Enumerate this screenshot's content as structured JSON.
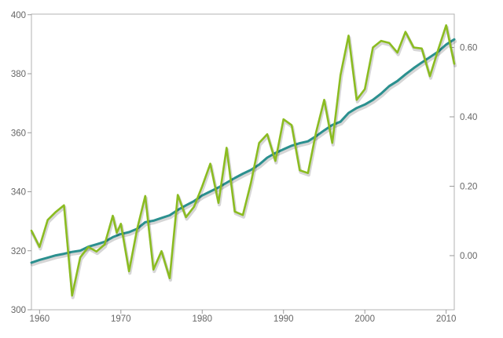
{
  "chart_data": {
    "type": "line",
    "title": "",
    "grid": false,
    "legend": false,
    "background": "#ffffff",
    "plot_border_color": "#b3b3b3",
    "tick_color": "#999999",
    "label_color": "#666666",
    "x_range": [
      1959,
      2011
    ],
    "x_axis": {
      "tick_labels": [
        "1960",
        "1970",
        "1980",
        "1990",
        "2000",
        "2010"
      ],
      "tick_values": [
        1960,
        1970,
        1980,
        1990,
        2000,
        2010
      ]
    },
    "left_axis": {
      "tick_labels": [
        "400",
        "380",
        "360",
        "340",
        "320",
        "300"
      ],
      "tick_values": [
        400,
        380,
        360,
        340,
        320,
        300
      ],
      "range": [
        300,
        400.2
      ]
    },
    "right_axis": {
      "tick_labels": [
        "0.60",
        "0.40",
        "0.20",
        "0.00"
      ],
      "tick_values": [
        0.6,
        0.4,
        0.2,
        0.0
      ],
      "range": [
        -0.156,
        0.696
      ]
    },
    "series": [
      {
        "name": "series-teal-smooth",
        "axis": "left",
        "color": "#2b908f",
        "stroke_width": 3,
        "start_year": 1959,
        "values": [
          315.97,
          316.91,
          317.64,
          318.45,
          318.99,
          319.62,
          320.04,
          321.38,
          322.16,
          323.04,
          324.62,
          325.68,
          326.32,
          327.45,
          329.68,
          330.18,
          331.11,
          332.04,
          333.83,
          335.4,
          336.84,
          338.75,
          340.11,
          341.45,
          343.05,
          344.65,
          346.12,
          347.42,
          349.19,
          351.57,
          353.12,
          354.39,
          355.61,
          356.45,
          357.1,
          358.83,
          360.82,
          362.61,
          363.73,
          366.7,
          368.38,
          369.55,
          371.14,
          373.28,
          375.8,
          377.52,
          379.8,
          381.9,
          383.79,
          385.6,
          387.43,
          389.9,
          391.65
        ]
      },
      {
        "name": "series-green-jagged",
        "axis": "right",
        "color": "#8bbc21",
        "stroke_width": 2.6,
        "points": [
          [
            1959,
            0.072
          ],
          [
            1960,
            0.025
          ],
          [
            1961,
            0.103
          ],
          [
            1962,
            0.126
          ],
          [
            1963,
            0.145
          ],
          [
            1964,
            -0.115
          ],
          [
            1965,
            -0.005
          ],
          [
            1966,
            0.025
          ],
          [
            1967,
            0.012
          ],
          [
            1968,
            0.032
          ],
          [
            1969,
            0.115
          ],
          [
            1969.5,
            0.066
          ],
          [
            1970,
            0.092
          ],
          [
            1971,
            -0.045
          ],
          [
            1972,
            0.077
          ],
          [
            1973,
            0.172
          ],
          [
            1974,
            -0.04
          ],
          [
            1975,
            0.013
          ],
          [
            1976,
            -0.065
          ],
          [
            1977,
            0.175
          ],
          [
            1978,
            0.111
          ],
          [
            1979,
            0.141
          ],
          [
            1980,
            0.2
          ],
          [
            1981,
            0.265
          ],
          [
            1982,
            0.152
          ],
          [
            1983,
            0.311
          ],
          [
            1984,
            0.127
          ],
          [
            1985,
            0.117
          ],
          [
            1986,
            0.21
          ],
          [
            1987,
            0.325
          ],
          [
            1988,
            0.35
          ],
          [
            1989,
            0.273
          ],
          [
            1990,
            0.393
          ],
          [
            1991,
            0.376
          ],
          [
            1992,
            0.246
          ],
          [
            1993,
            0.238
          ],
          [
            1994,
            0.355
          ],
          [
            1995,
            0.449
          ],
          [
            1996,
            0.325
          ],
          [
            1997,
            0.52
          ],
          [
            1998,
            0.634
          ],
          [
            1999,
            0.449
          ],
          [
            2000,
            0.48
          ],
          [
            2001,
            0.6
          ],
          [
            2002,
            0.619
          ],
          [
            2003,
            0.613
          ],
          [
            2004,
            0.585
          ],
          [
            2005,
            0.645
          ],
          [
            2006,
            0.6
          ],
          [
            2007,
            0.597
          ],
          [
            2008,
            0.517
          ],
          [
            2009,
            0.592
          ],
          [
            2010,
            0.664
          ],
          [
            2011,
            0.553
          ]
        ]
      }
    ]
  }
}
